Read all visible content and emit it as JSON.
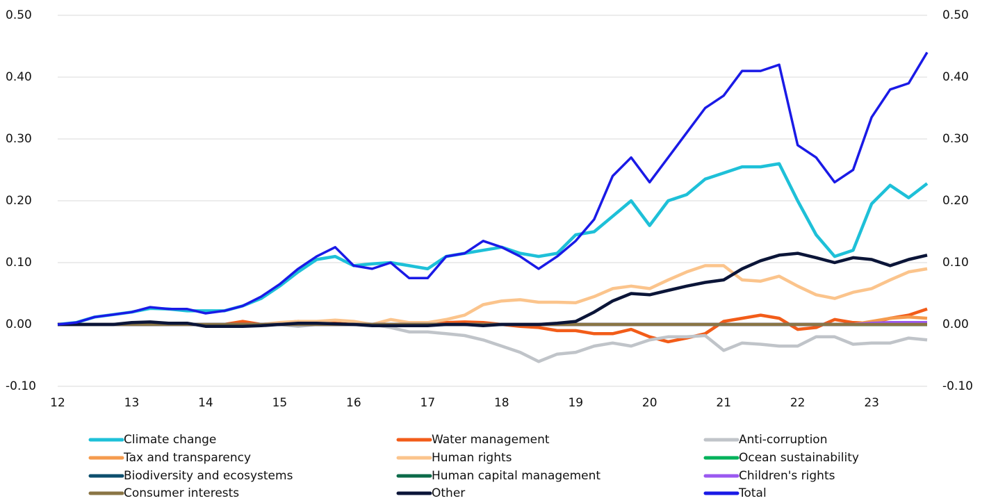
{
  "chart_data": {
    "type": "line",
    "x": [
      12,
      12.25,
      12.5,
      12.75,
      13,
      13.25,
      13.5,
      13.75,
      14,
      14.25,
      14.5,
      14.75,
      15,
      15.25,
      15.5,
      15.75,
      16,
      16.25,
      16.5,
      16.75,
      17,
      17.25,
      17.5,
      17.75,
      18,
      18.25,
      18.5,
      18.75,
      19,
      19.25,
      19.5,
      19.75,
      20,
      20.25,
      20.5,
      20.75,
      21,
      21.25,
      21.5,
      21.75,
      22,
      22.25,
      22.5,
      22.75,
      23,
      23.25,
      23.5,
      23.75
    ],
    "xlim": [
      12,
      23.75
    ],
    "xticks": [
      12,
      13,
      14,
      15,
      16,
      17,
      18,
      19,
      20,
      21,
      22,
      23
    ],
    "ylim": [
      -0.1,
      0.5
    ],
    "yticks": [
      {
        "value": -0.1,
        "label": "-0.10"
      },
      {
        "value": 0,
        "label": "0.00"
      },
      {
        "value": 0.1,
        "label": "0.10"
      },
      {
        "value": 0.2,
        "label": "0.20"
      },
      {
        "value": 0.3,
        "label": "0.30"
      },
      {
        "value": 0.4,
        "label": "0.40"
      },
      {
        "value": 0.5,
        "label": "0.50"
      }
    ],
    "y2lim": [
      -0.1,
      0.5
    ],
    "y2ticks": [
      {
        "value": -0.1,
        "label": "-0.10"
      },
      {
        "value": 0,
        "label": "0.00"
      },
      {
        "value": 0.1,
        "label": "0.10"
      },
      {
        "value": 0.2,
        "label": "0.20"
      },
      {
        "value": 0.3,
        "label": "0.30"
      },
      {
        "value": 0.4,
        "label": "0.40"
      },
      {
        "value": 0.5,
        "label": "0.50"
      }
    ],
    "grid": true,
    "legend": "bottom",
    "series": [
      {
        "name": "Climate change",
        "color": "#1ec0d8",
        "values": [
          0,
          0.003,
          0.012,
          0.016,
          0.02,
          0.026,
          0.025,
          0.022,
          0.022,
          0.022,
          0.03,
          0.042,
          0.062,
          0.085,
          0.105,
          0.11,
          0.095,
          0.098,
          0.1,
          0.095,
          0.09,
          0.11,
          0.115,
          0.12,
          0.125,
          0.115,
          0.11,
          0.115,
          0.145,
          0.15,
          0.175,
          0.2,
          0.16,
          0.2,
          0.21,
          0.235,
          0.245,
          0.255,
          0.255,
          0.26,
          0.2,
          0.145,
          0.11,
          0.12,
          0.195,
          0.225,
          0.205,
          0.228
        ]
      },
      {
        "name": "Water management",
        "color": "#f25c19",
        "values": [
          0,
          0,
          0,
          0,
          0,
          0,
          0,
          0,
          0,
          0,
          0.005,
          0,
          0.002,
          0.005,
          0.003,
          0.002,
          0,
          0,
          -0.003,
          0,
          0.002,
          0.003,
          0.004,
          0.003,
          0,
          -0.003,
          -0.005,
          -0.01,
          -0.01,
          -0.015,
          -0.015,
          -0.008,
          -0.02,
          -0.028,
          -0.022,
          -0.015,
          0.005,
          0.01,
          0.015,
          0.01,
          -0.008,
          -0.005,
          0.008,
          0.003,
          0.002,
          0.01,
          0.015,
          0.025
        ]
      },
      {
        "name": "Anti-corruption",
        "color": "#c0c4c9",
        "values": [
          0,
          0,
          0,
          0,
          0,
          0,
          0,
          0,
          0,
          0,
          0,
          0,
          0,
          -0.003,
          0,
          0,
          0,
          0,
          -0.005,
          -0.012,
          -0.012,
          -0.015,
          -0.018,
          -0.025,
          -0.035,
          -0.045,
          -0.06,
          -0.048,
          -0.045,
          -0.035,
          -0.03,
          -0.035,
          -0.025,
          -0.02,
          -0.02,
          -0.018,
          -0.042,
          -0.03,
          -0.032,
          -0.035,
          -0.035,
          -0.02,
          -0.02,
          -0.032,
          -0.03,
          -0.03,
          -0.022,
          -0.025
        ]
      },
      {
        "name": "Tax and transparency",
        "color": "#f59b4e",
        "values": [
          0,
          0,
          0,
          0,
          0,
          0,
          0,
          0,
          0,
          0,
          0,
          0,
          0,
          0,
          0,
          0,
          0,
          0,
          0,
          0,
          0,
          0,
          0,
          0,
          0,
          0,
          0,
          0,
          0,
          0,
          0,
          0,
          0,
          0,
          0,
          0,
          0,
          0,
          0,
          0,
          0,
          0,
          0,
          0,
          0.005,
          0.01,
          0.012,
          0.01
        ]
      },
      {
        "name": "Human rights",
        "color": "#fbc48c",
        "values": [
          0,
          0,
          0,
          0,
          0,
          0,
          0,
          0,
          0,
          0,
          0,
          0,
          0.003,
          0.005,
          0.005,
          0.007,
          0.005,
          0,
          0.008,
          0.003,
          0.003,
          0.008,
          0.015,
          0.032,
          0.038,
          0.04,
          0.036,
          0.036,
          0.035,
          0.045,
          0.058,
          0.062,
          0.058,
          0.072,
          0.085,
          0.095,
          0.095,
          0.072,
          0.07,
          0.078,
          0.062,
          0.048,
          0.042,
          0.052,
          0.058,
          0.072,
          0.085,
          0.09
        ]
      },
      {
        "name": "Ocean sustainability",
        "color": "#00b25b",
        "values": [
          0,
          0,
          0,
          0,
          0,
          0,
          0,
          0,
          0,
          0,
          0,
          0,
          0,
          0,
          0,
          0,
          0,
          0,
          0,
          0,
          0,
          0,
          0,
          0,
          0,
          0,
          0,
          0,
          0,
          0,
          0,
          0,
          0,
          0,
          0,
          0,
          0,
          0,
          0,
          0,
          0,
          0,
          0,
          0,
          0,
          0,
          0,
          0
        ]
      },
      {
        "name": "Biodiversity and ecosystems",
        "color": "#0d4f6e",
        "values": [
          0,
          0,
          0,
          0,
          0,
          0,
          0,
          0,
          0,
          0,
          0,
          0,
          0,
          0,
          0,
          0,
          0,
          0,
          0,
          0,
          0,
          0,
          0,
          0,
          0,
          0,
          0,
          0,
          0,
          0,
          0,
          0,
          0,
          0,
          0,
          0,
          0,
          0,
          0,
          0,
          0,
          0,
          0,
          0,
          0,
          0,
          0,
          0
        ]
      },
      {
        "name": "Human capital management",
        "color": "#0c6b4a",
        "values": [
          0,
          0,
          0,
          0,
          0,
          0,
          0,
          0,
          0,
          0,
          0,
          0,
          0,
          0,
          0,
          0,
          0,
          0,
          0,
          0,
          0,
          0,
          0,
          0,
          0,
          0,
          0,
          0,
          0,
          0,
          0,
          0,
          0,
          0,
          0,
          0,
          0,
          0,
          0,
          0,
          0,
          0,
          0,
          0,
          0,
          0,
          0,
          0
        ]
      },
      {
        "name": "Children's rights",
        "color": "#9b59f0",
        "values": [
          0,
          0,
          0,
          0,
          0,
          0,
          0,
          0,
          0,
          0,
          0,
          0,
          0,
          0,
          0,
          0,
          0,
          0,
          0,
          0,
          0,
          0,
          0,
          0,
          0,
          0,
          0,
          0,
          0,
          0,
          0,
          0,
          0,
          0,
          0,
          0,
          0,
          0,
          0,
          0,
          0,
          0,
          0,
          0,
          0.002,
          0.003,
          0.003,
          0.003
        ]
      },
      {
        "name": "Consumer interests",
        "color": "#8a7545",
        "values": [
          0,
          0,
          0,
          0,
          0,
          0,
          0,
          0,
          0,
          0,
          0,
          0,
          0,
          0,
          0,
          0,
          0,
          0,
          0,
          0,
          0,
          0,
          0,
          0,
          0,
          0,
          0,
          0,
          0,
          0,
          0,
          0,
          0,
          0,
          0,
          0,
          0,
          0,
          0,
          0,
          0,
          0,
          0,
          0,
          0,
          0,
          0,
          0
        ]
      },
      {
        "name": "Other",
        "color": "#0b1538",
        "values": [
          0,
          0,
          0,
          0,
          0.003,
          0.004,
          0.002,
          0.002,
          -0.003,
          -0.003,
          -0.003,
          -0.002,
          0,
          0.002,
          0.002,
          0.001,
          0,
          -0.002,
          -0.002,
          -0.002,
          -0.002,
          0,
          0,
          -0.002,
          0,
          0,
          0,
          0.002,
          0.005,
          0.02,
          0.038,
          0.05,
          0.048,
          0.055,
          0.062,
          0.068,
          0.072,
          0.09,
          0.103,
          0.112,
          0.115,
          0.108,
          0.1,
          0.108,
          0.105,
          0.095,
          0.105,
          0.112
        ]
      },
      {
        "name": "Total",
        "color": "#1a1ae6",
        "values": [
          0,
          0.003,
          0.012,
          0.016,
          0.02,
          0.028,
          0.025,
          0.025,
          0.018,
          0.022,
          0.03,
          0.045,
          0.065,
          0.09,
          0.11,
          0.125,
          0.095,
          0.09,
          0.1,
          0.075,
          0.075,
          0.11,
          0.115,
          0.135,
          0.125,
          0.11,
          0.09,
          0.11,
          0.135,
          0.17,
          0.24,
          0.27,
          0.23,
          0.27,
          0.31,
          0.35,
          0.37,
          0.41,
          0.41,
          0.42,
          0.29,
          0.27,
          0.23,
          0.25,
          0.335,
          0.38,
          0.39,
          0.44
        ]
      }
    ]
  }
}
